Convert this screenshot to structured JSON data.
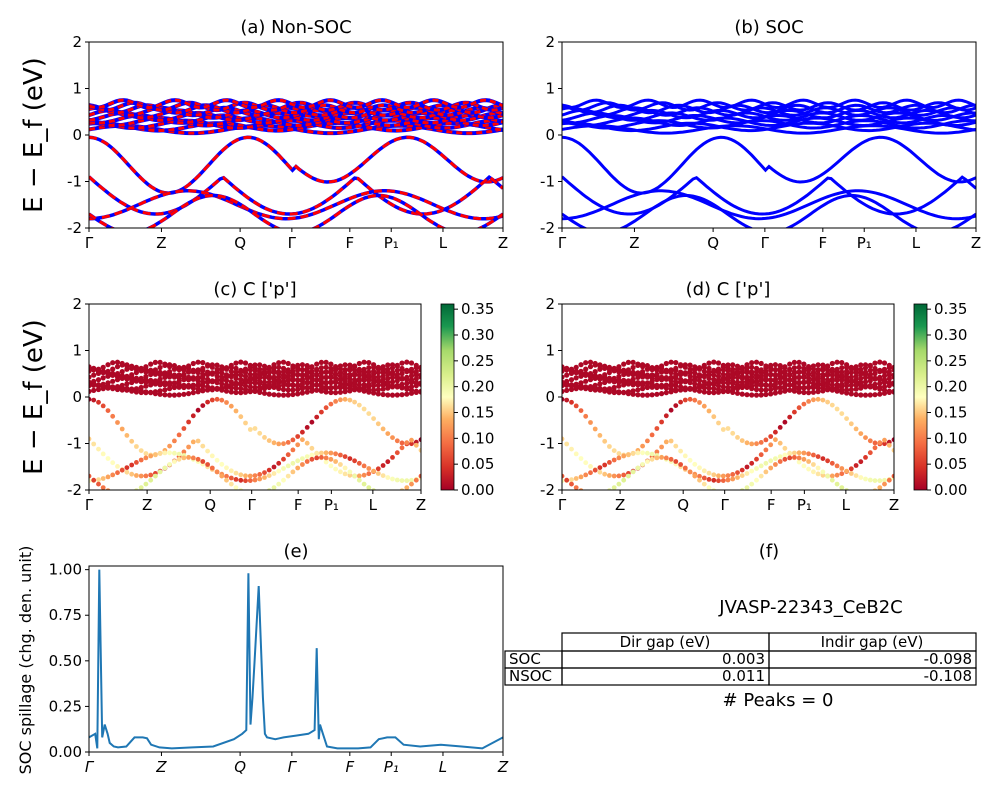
{
  "kpath_labels": [
    "Γ",
    "Z",
    "Q",
    "Γ",
    "F",
    "P₁",
    "L",
    "Z"
  ],
  "ylabel_band": "E − E_f (eV)",
  "ylabel_spill": "SOC spillage (chg. den. unit)",
  "colors": {
    "nonsoc_a": "#ff0000",
    "nonsoc_b": "#0000ff",
    "soc": "#0000ff",
    "spill": "#1f77b4"
  },
  "colormap": "RdYlGn",
  "chart_data": [
    {
      "type": "line",
      "title": "(a) Non-SOC",
      "ylim": [
        -2,
        2
      ],
      "yticks": [
        -2,
        -1,
        0,
        1,
        2
      ],
      "xticks": [
        "Γ",
        "Z",
        "Q",
        "Γ",
        "F",
        "P₁",
        "L",
        "Z"
      ],
      "ylabel": "E − E_f (eV)",
      "series": [
        {
          "name": "",
          "color": "#ff0000"
        },
        {
          "name": "",
          "color": "#0000ff"
        }
      ]
    },
    {
      "type": "line",
      "title": "(b) SOC",
      "ylim": [
        -2,
        2
      ],
      "yticks": [
        -2,
        -1,
        0,
        1,
        2
      ],
      "xticks": [
        "Γ",
        "Z",
        "Q",
        "Γ",
        "F",
        "P₁",
        "L",
        "Z"
      ],
      "series": [
        {
          "name": "",
          "color": "#0000ff"
        }
      ]
    },
    {
      "type": "scatter",
      "title": "(c)  C ['p']",
      "ylim": [
        -2,
        2
      ],
      "yticks": [
        -2,
        -1,
        0,
        1,
        2
      ],
      "xticks": [
        "Γ",
        "Z",
        "Q",
        "Γ",
        "F",
        "P₁",
        "L",
        "Z"
      ],
      "ylabel": "E − E_f (eV)",
      "colorbar": {
        "range": [
          0,
          0.36
        ],
        "ticks": [
          "0.00",
          "0.05",
          "0.10",
          "0.15",
          "0.20",
          "0.25",
          "0.30",
          "0.35"
        ]
      }
    },
    {
      "type": "scatter",
      "title": "(d) C ['p']",
      "ylim": [
        -2,
        2
      ],
      "yticks": [
        -2,
        -1,
        0,
        1,
        2
      ],
      "xticks": [
        "Γ",
        "Z",
        "Q",
        "Γ",
        "F",
        "P₁",
        "L",
        "Z"
      ],
      "colorbar": {
        "range": [
          0,
          0.36
        ],
        "ticks": [
          "0.00",
          "0.05",
          "0.10",
          "0.15",
          "0.20",
          "0.25",
          "0.30",
          "0.35"
        ]
      }
    },
    {
      "type": "line",
      "title": "(e)",
      "ylabel": "SOC spillage (chg. den. unit)",
      "ylim": [
        0,
        1.02
      ],
      "yticks": [
        "0.00",
        "0.25",
        "0.50",
        "0.75",
        "1.00"
      ],
      "xticks": [
        "Γ",
        "Z",
        "Q",
        "Γ",
        "F",
        "P₁",
        "L",
        "Z"
      ],
      "x": [
        0,
        0.015,
        0.02,
        0.025,
        0.032,
        0.038,
        0.045,
        0.05,
        0.06,
        0.07,
        0.09,
        0.11,
        0.13,
        0.14,
        0.15,
        0.17,
        0.2,
        0.25,
        0.3,
        0.35,
        0.37,
        0.38,
        0.385,
        0.39,
        0.395,
        0.4,
        0.41,
        0.42,
        0.425,
        0.43,
        0.44,
        0.45,
        0.46,
        0.47,
        0.5,
        0.53,
        0.545,
        0.55,
        0.555,
        0.558,
        0.565,
        0.575,
        0.6,
        0.65,
        0.68,
        0.7,
        0.72,
        0.74,
        0.76,
        0.8,
        0.85,
        0.9,
        0.95,
        1.0
      ],
      "values": [
        0.08,
        0.1,
        0.02,
        1.0,
        0.08,
        0.15,
        0.1,
        0.05,
        0.03,
        0.025,
        0.03,
        0.08,
        0.08,
        0.075,
        0.04,
        0.025,
        0.02,
        0.025,
        0.03,
        0.07,
        0.1,
        0.12,
        0.98,
        0.15,
        0.3,
        0.5,
        0.91,
        0.3,
        0.1,
        0.08,
        0.075,
        0.07,
        0.075,
        0.08,
        0.09,
        0.1,
        0.12,
        0.57,
        0.07,
        0.15,
        0.1,
        0.03,
        0.02,
        0.02,
        0.025,
        0.07,
        0.08,
        0.08,
        0.04,
        0.03,
        0.04,
        0.03,
        0.02,
        0.08
      ]
    },
    {
      "type": "table",
      "title": "(f)",
      "subtitle": "JVASP-22343_CeB2C",
      "columns": [
        "",
        "Dir gap (eV)",
        "Indir gap (eV)"
      ],
      "rows": [
        [
          "SOC",
          "0.003",
          "-0.098"
        ],
        [
          "NSOC",
          "0.011",
          "-0.108"
        ]
      ],
      "note": "# Peaks = 0"
    }
  ]
}
